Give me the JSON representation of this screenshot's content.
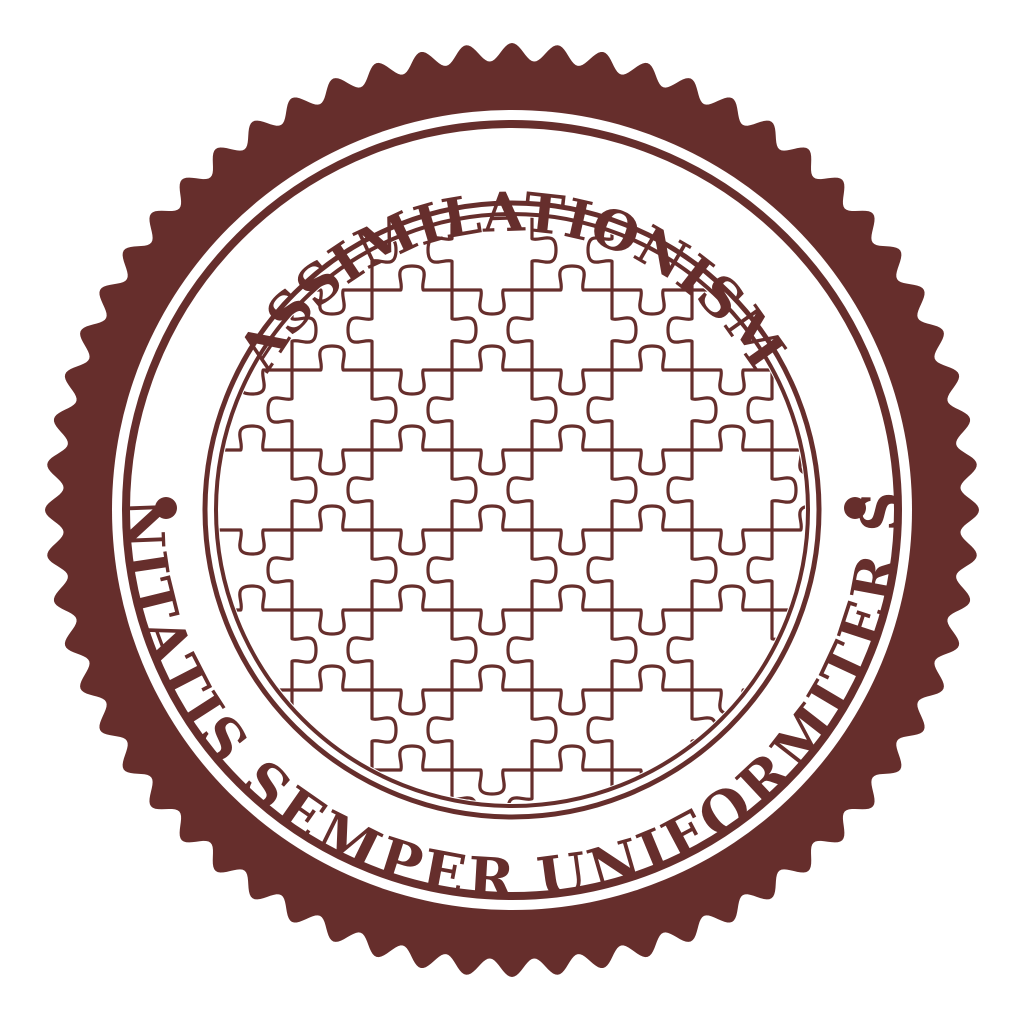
{
  "seal": {
    "top_text": "ASSIMILATIONISM",
    "bottom_text": "UNITATIS SEMPER UNIFORMITER SE",
    "center_motif": "jigsaw-puzzle-pattern",
    "colors": {
      "primary": "#662e2c",
      "background": "#ffffff"
    }
  }
}
